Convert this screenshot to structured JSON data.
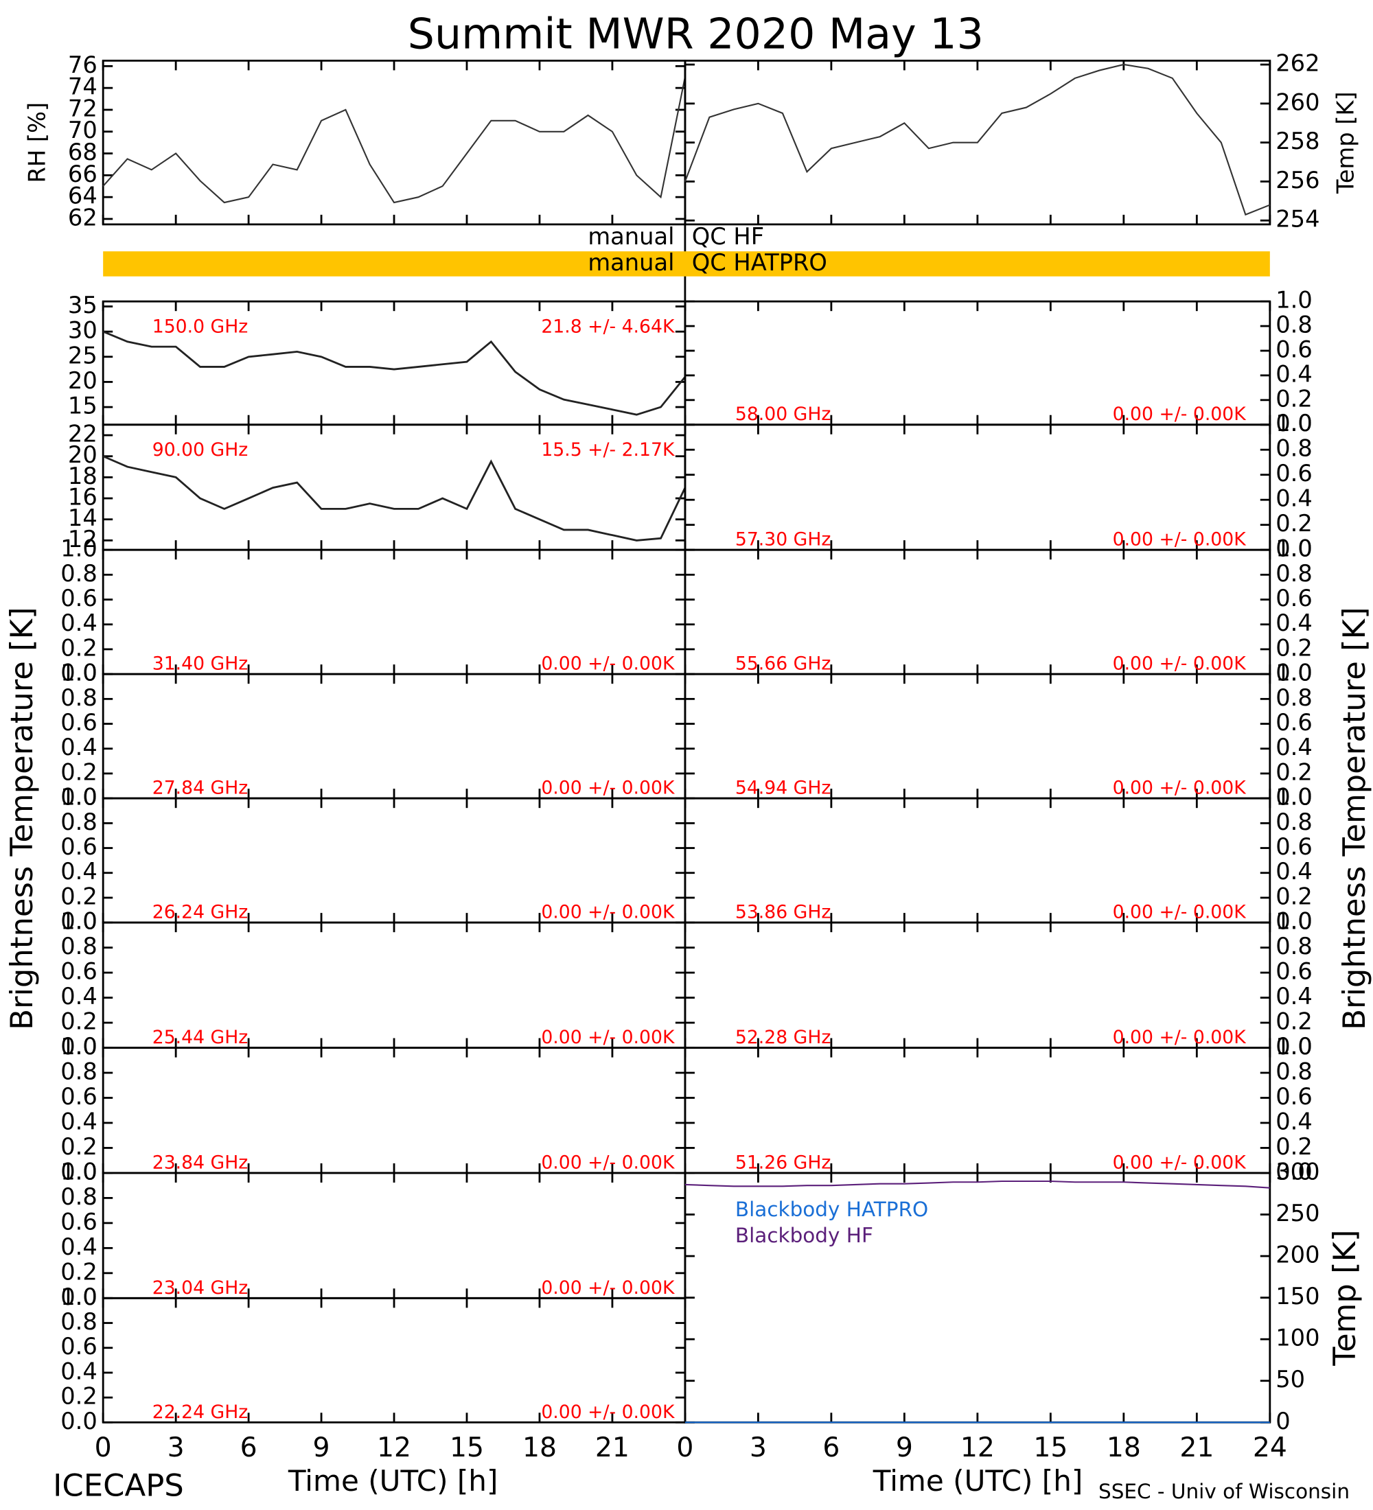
{
  "title": "Summit MWR 2020 May 13",
  "footer_left": "ICECAPS",
  "footer_right": "SSEC - Univ of Wisconsin",
  "bt_label": "Brightness Temperature [K]",
  "qc": [
    {
      "left": "manual",
      "right": "QC HF",
      "color": null
    },
    {
      "left": "manual",
      "right": "QC HATPRO",
      "color": "#ffc400"
    }
  ],
  "time_axis": {
    "xlabel": "Time (UTC) [h]",
    "xlim": [
      0,
      24
    ],
    "xticks": [
      0,
      3,
      6,
      9,
      12,
      15,
      18,
      21,
      24
    ]
  },
  "chart_data": [
    {
      "type": "line",
      "ylabel": "RH [%]",
      "ylim": [
        61.5,
        76.5
      ],
      "yticks": [
        62,
        64,
        66,
        68,
        70,
        72,
        74,
        76
      ],
      "x": [
        0,
        1,
        2,
        3,
        4,
        5,
        6,
        7,
        8,
        9,
        10,
        11,
        12,
        13,
        14,
        15,
        16,
        17,
        18,
        19,
        20,
        21,
        22,
        23,
        24
      ],
      "series": [
        {
          "name": "RH",
          "color": "#333333",
          "values": [
            65,
            67.5,
            66.5,
            68,
            65.5,
            63.5,
            64,
            67,
            66.5,
            71,
            72,
            67,
            63.5,
            64,
            65,
            68,
            71,
            71,
            70,
            70,
            71.5,
            70,
            66,
            64,
            75
          ]
        }
      ]
    },
    {
      "type": "line",
      "ylabel": "Temp [K]",
      "ylim": [
        253.8,
        262.2
      ],
      "yticks": [
        254,
        256,
        258,
        260,
        262
      ],
      "x": [
        0,
        1,
        2,
        3,
        4,
        5,
        6,
        7,
        8,
        9,
        10,
        11,
        12,
        13,
        14,
        15,
        16,
        17,
        18,
        19,
        20,
        21,
        22,
        23,
        24
      ],
      "series": [
        {
          "name": "Temp",
          "color": "#333333",
          "values": [
            256,
            259.3,
            259.7,
            260,
            259.5,
            256.5,
            257.7,
            258,
            258.3,
            259,
            257.7,
            258,
            258,
            259.5,
            259.8,
            260.5,
            261.3,
            261.7,
            262,
            261.8,
            261.3,
            259.5,
            258,
            254.3,
            254.8
          ]
        }
      ]
    },
    {
      "type": "line",
      "annotations": [
        "150.0 GHz",
        "21.8 +/-  4.64K"
      ],
      "ylim": [
        11.5,
        36
      ],
      "yticks": [
        15,
        20,
        25,
        30,
        35
      ],
      "x": [
        0,
        1,
        2,
        3,
        4,
        5,
        6,
        7,
        8,
        9,
        10,
        11,
        12,
        13,
        14,
        15,
        16,
        17,
        18,
        19,
        20,
        21,
        22,
        23,
        24
      ],
      "series": [
        {
          "name": "150.0 GHz",
          "color": "#222222",
          "values": [
            30,
            28,
            27,
            27,
            23,
            23,
            25,
            25.5,
            26,
            25,
            23,
            23,
            22.5,
            23,
            23.5,
            24,
            28,
            22,
            18.5,
            16.5,
            15.5,
            14.5,
            13.5,
            15,
            21
          ]
        }
      ]
    },
    {
      "type": "line",
      "annotations": [
        "90.00 GHz",
        "15.5 +/-  2.17K"
      ],
      "ylim": [
        11.1,
        23
      ],
      "yticks": [
        12,
        14,
        16,
        18,
        20,
        22
      ],
      "x": [
        0,
        1,
        2,
        3,
        4,
        5,
        6,
        7,
        8,
        9,
        10,
        11,
        12,
        13,
        14,
        15,
        16,
        17,
        18,
        19,
        20,
        21,
        22,
        23,
        24
      ],
      "series": [
        {
          "name": "90.00 GHz",
          "color": "#222222",
          "values": [
            20,
            19,
            18.5,
            18,
            16,
            15,
            16,
            17,
            17.5,
            15,
            15,
            15.5,
            15,
            15,
            16,
            15,
            19.5,
            15,
            14,
            13,
            13,
            12.5,
            12,
            12.2,
            17
          ]
        }
      ]
    },
    {
      "type": "line",
      "annotations": [
        "31.40 GHz",
        "0.00 +/- 0.00K"
      ],
      "ylim": [
        0,
        1
      ],
      "yticks": [
        {
          "value": 0,
          "label": "0.0"
        },
        0.2,
        0.4,
        0.6,
        0.8,
        {
          "value": 1,
          "label": "1.0"
        }
      ],
      "series": []
    },
    {
      "type": "line",
      "annotations": [
        "27.84 GHz",
        "0.00 +/- 0.00K"
      ],
      "ylim": [
        0,
        1
      ],
      "yticks": [
        {
          "value": 0,
          "label": "0.0"
        },
        0.2,
        0.4,
        0.6,
        0.8,
        {
          "value": 1,
          "label": "1.0"
        }
      ],
      "series": []
    },
    {
      "type": "line",
      "annotations": [
        "26.24 GHz",
        "0.00 +/- 0.00K"
      ],
      "ylim": [
        0,
        1
      ],
      "yticks": [
        {
          "value": 0,
          "label": "0.0"
        },
        0.2,
        0.4,
        0.6,
        0.8,
        {
          "value": 1,
          "label": "1.0"
        }
      ],
      "series": []
    },
    {
      "type": "line",
      "annotations": [
        "25.44 GHz",
        "0.00 +/- 0.00K"
      ],
      "ylim": [
        0,
        1
      ],
      "yticks": [
        {
          "value": 0,
          "label": "0.0"
        },
        0.2,
        0.4,
        0.6,
        0.8,
        {
          "value": 1,
          "label": "1.0"
        }
      ],
      "series": []
    },
    {
      "type": "line",
      "annotations": [
        "23.84 GHz",
        "0.00 +/- 0.00K"
      ],
      "ylim": [
        0,
        1
      ],
      "yticks": [
        {
          "value": 0,
          "label": "0.0"
        },
        0.2,
        0.4,
        0.6,
        0.8,
        {
          "value": 1,
          "label": "1.0"
        }
      ],
      "series": []
    },
    {
      "type": "line",
      "annotations": [
        "23.04 GHz",
        "0.00 +/- 0.00K"
      ],
      "ylim": [
        0,
        1
      ],
      "yticks": [
        {
          "value": 0,
          "label": "0.0"
        },
        0.2,
        0.4,
        0.6,
        0.8,
        {
          "value": 1,
          "label": "1.0"
        }
      ],
      "series": []
    },
    {
      "type": "line",
      "annotations": [
        "22.24 GHz",
        "0.00 +/- 0.00K"
      ],
      "ylim": [
        0,
        1
      ],
      "yticks": [
        {
          "value": 0,
          "label": "0.0"
        },
        0.2,
        0.4,
        0.6,
        0.8,
        {
          "value": 1,
          "label": "1.0"
        }
      ],
      "series": []
    },
    {
      "type": "line",
      "annotations": [
        "58.00 GHz",
        "0.00 +/- 0.00K"
      ],
      "ylim": [
        0,
        1
      ],
      "yticks": [
        {
          "value": 0,
          "label": "0.0"
        },
        0.2,
        0.4,
        0.6,
        0.8,
        {
          "value": 1,
          "label": "1.0"
        }
      ],
      "series": []
    },
    {
      "type": "line",
      "annotations": [
        "57.30 GHz",
        "0.00 +/- 0.00K"
      ],
      "ylim": [
        0,
        1
      ],
      "yticks": [
        {
          "value": 0,
          "label": "0.0"
        },
        0.2,
        0.4,
        0.6,
        0.8,
        {
          "value": 1,
          "label": "1.0"
        }
      ],
      "series": []
    },
    {
      "type": "line",
      "annotations": [
        "55.66 GHz",
        "0.00 +/- 0.00K"
      ],
      "ylim": [
        0,
        1
      ],
      "yticks": [
        {
          "value": 0,
          "label": "0.0"
        },
        0.2,
        0.4,
        0.6,
        0.8,
        {
          "value": 1,
          "label": "1.0"
        }
      ],
      "series": []
    },
    {
      "type": "line",
      "annotations": [
        "54.94 GHz",
        "0.00 +/- 0.00K"
      ],
      "ylim": [
        0,
        1
      ],
      "yticks": [
        {
          "value": 0,
          "label": "0.0"
        },
        0.2,
        0.4,
        0.6,
        0.8,
        {
          "value": 1,
          "label": "1.0"
        }
      ],
      "series": []
    },
    {
      "type": "line",
      "annotations": [
        "53.86 GHz",
        "0.00 +/- 0.00K"
      ],
      "ylim": [
        0,
        1
      ],
      "yticks": [
        {
          "value": 0,
          "label": "0.0"
        },
        0.2,
        0.4,
        0.6,
        0.8,
        {
          "value": 1,
          "label": "1.0"
        }
      ],
      "series": []
    },
    {
      "type": "line",
      "annotations": [
        "52.28 GHz",
        "0.00 +/- 0.00K"
      ],
      "ylim": [
        0,
        1
      ],
      "yticks": [
        {
          "value": 0,
          "label": "0.0"
        },
        0.2,
        0.4,
        0.6,
        0.8,
        {
          "value": 1,
          "label": "1.0"
        }
      ],
      "series": []
    },
    {
      "type": "line",
      "annotations": [
        "51.26 GHz",
        "0.00 +/- 0.00K"
      ],
      "ylim": [
        0,
        1
      ],
      "yticks": [
        {
          "value": 0,
          "label": "0.0"
        },
        0.2,
        0.4,
        0.6,
        0.8,
        {
          "value": 1,
          "label": "1.0"
        }
      ],
      "series": []
    },
    {
      "type": "line",
      "ylabel": "Temp [K]",
      "ylim": [
        0,
        300
      ],
      "yticks": [
        0,
        50,
        100,
        150,
        200,
        250,
        300
      ],
      "x": [
        0,
        1,
        2,
        3,
        4,
        5,
        6,
        7,
        8,
        9,
        10,
        11,
        12,
        13,
        14,
        15,
        16,
        17,
        18,
        19,
        20,
        21,
        22,
        23,
        24
      ],
      "series": [
        {
          "name": "Blackbody HATPRO",
          "color": "#1a6fd6",
          "values": [
            0,
            0,
            0,
            0,
            0,
            0,
            0,
            0,
            0,
            0,
            0,
            0,
            0,
            0,
            0,
            0,
            0,
            0,
            0,
            0,
            0,
            0,
            0,
            0,
            0
          ]
        },
        {
          "name": "Blackbody HF",
          "color": "#5b1f7a",
          "values": [
            286,
            285,
            284,
            284,
            284,
            285,
            285,
            286,
            287,
            287,
            288,
            289,
            289,
            290,
            290,
            290,
            289,
            289,
            289,
            288,
            287,
            286,
            285,
            284,
            282
          ]
        }
      ]
    }
  ]
}
